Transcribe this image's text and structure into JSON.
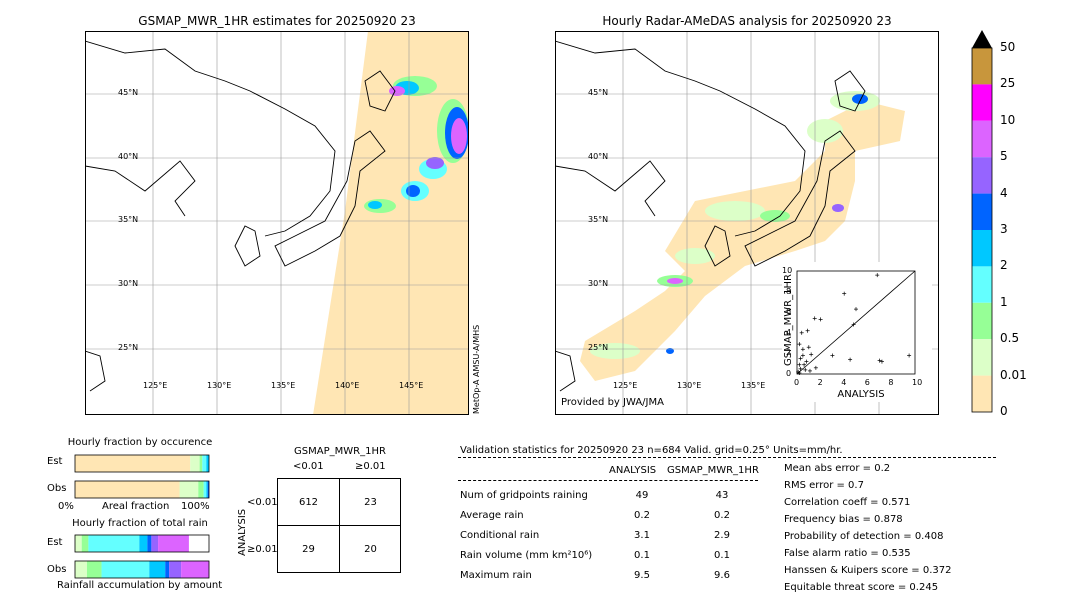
{
  "map_left": {
    "title": "GSMAP_MWR_1HR estimates for 20250920 23",
    "sensor_note": "MetOp-A AMSU-A/MHS",
    "lat_labels": [
      "45°N",
      "40°N",
      "35°N",
      "30°N",
      "25°N"
    ],
    "lon_labels": [
      "125°E",
      "130°E",
      "135°E",
      "140°E",
      "145°E"
    ]
  },
  "map_right": {
    "title": "Hourly Radar-AMeDAS analysis for 20250920 23",
    "provider": "Provided by JWA/JMA",
    "lat_labels": [
      "45°N",
      "40°N",
      "35°N",
      "30°N",
      "25°N"
    ],
    "lon_labels": [
      "125°E",
      "130°E",
      "135°E"
    ]
  },
  "colorbar": {
    "labels": [
      "50",
      "25",
      "10",
      "5",
      "4",
      "3",
      "2",
      "1",
      "0.5",
      "0.01",
      "0"
    ],
    "colors": [
      "#c8963c",
      "#ff00ff",
      "#dc64ff",
      "#9664ff",
      "#0064ff",
      "#00c8ff",
      "#64ffff",
      "#96ff96",
      "#dcffc8",
      "#ffe6b4"
    ]
  },
  "chart_data": [
    {
      "type": "scatter",
      "xlabel": "ANALYSIS",
      "ylabel": "GSMAP_MWR_1HR",
      "xlim": [
        0,
        10
      ],
      "ylim": [
        0,
        10
      ],
      "ticks": [
        "0",
        "2",
        "4",
        "6",
        "8",
        "10"
      ],
      "points": [
        [
          0.1,
          0.2
        ],
        [
          0.2,
          0.1
        ],
        [
          0.3,
          0.5
        ],
        [
          0.5,
          1.8
        ],
        [
          0.6,
          0.9
        ],
        [
          0.8,
          1.2
        ],
        [
          1.0,
          2.6
        ],
        [
          1.2,
          1.9
        ],
        [
          0.4,
          4.0
        ],
        [
          0.9,
          4.2
        ],
        [
          1.5,
          5.4
        ],
        [
          2.0,
          5.3
        ],
        [
          3.0,
          1.8
        ],
        [
          4.0,
          7.8
        ],
        [
          4.5,
          1.4
        ],
        [
          4.8,
          4.8
        ],
        [
          5.0,
          6.3
        ],
        [
          6.8,
          9.6
        ],
        [
          7.0,
          1.3
        ],
        [
          7.2,
          1.2
        ],
        [
          9.5,
          1.8
        ],
        [
          0.2,
          0.9
        ],
        [
          0.3,
          1.5
        ],
        [
          0.7,
          0.4
        ],
        [
          1.1,
          0.3
        ],
        [
          1.6,
          0.6
        ],
        [
          0.5,
          2.4
        ],
        [
          0.2,
          2.9
        ]
      ],
      "grid": false
    },
    {
      "type": "bar",
      "title": "Hourly fraction by occurence",
      "categories": [
        "Est",
        "Obs"
      ],
      "xlabels": [
        "0%",
        "Areal fraction",
        "100%"
      ],
      "segments": [
        [
          {
            "color": "#ffe6b4",
            "value": 0.86
          },
          {
            "color": "#dcffc8",
            "value": 0.07
          },
          {
            "color": "#96ff96",
            "value": 0.02
          },
          {
            "color": "#64ffff",
            "value": 0.03
          },
          {
            "color": "#00c8ff",
            "value": 0.02
          }
        ],
        [
          {
            "color": "#ffe6b4",
            "value": 0.78
          },
          {
            "color": "#dcffc8",
            "value": 0.14
          },
          {
            "color": "#96ff96",
            "value": 0.04
          },
          {
            "color": "#64ffff",
            "value": 0.02
          },
          {
            "color": "#00c8ff",
            "value": 0.01
          },
          {
            "color": "#0064ff",
            "value": 0.01
          }
        ]
      ]
    },
    {
      "type": "bar",
      "title": "Hourly fraction of total rain",
      "categories": [
        "Est",
        "Obs"
      ],
      "xlabels": [
        "Rainfall accumulation by amount"
      ],
      "segments": [
        [
          {
            "color": "#dcffc8",
            "value": 0.05
          },
          {
            "color": "#96ff96",
            "value": 0.05
          },
          {
            "color": "#64ffff",
            "value": 0.38
          },
          {
            "color": "#00c8ff",
            "value": 0.06
          },
          {
            "color": "#0064ff",
            "value": 0.03
          },
          {
            "color": "#9664ff",
            "value": 0.05
          },
          {
            "color": "#dc64ff",
            "value": 0.23
          }
        ],
        [
          {
            "color": "#dcffc8",
            "value": 0.09
          },
          {
            "color": "#96ff96",
            "value": 0.11
          },
          {
            "color": "#64ffff",
            "value": 0.36
          },
          {
            "color": "#00c8ff",
            "value": 0.12
          },
          {
            "color": "#0064ff",
            "value": 0.03
          },
          {
            "color": "#9664ff",
            "value": 0.09
          },
          {
            "color": "#dc64ff",
            "value": 0.21
          }
        ]
      ]
    },
    {
      "type": "table",
      "title": "GSMAP_MWR_1HR",
      "col_labels": [
        "<0.01",
        "≥0.01"
      ],
      "row_labels": [
        "<0.01",
        "≥0.01"
      ],
      "side_label": "ANALYSIS",
      "cells": [
        [
          612,
          23
        ],
        [
          29,
          20
        ]
      ]
    }
  ],
  "validation": {
    "header": "Validation statistics for 20250920 23  n=684 Valid. grid=0.25° Units=mm/hr.",
    "col_analysis": "ANALYSIS",
    "col_gsmap": "GSMAP_MWR_1HR",
    "rows": [
      {
        "label": "Num of gridpoints raining",
        "analysis": "49",
        "gsmap": "43"
      },
      {
        "label": "Average rain",
        "analysis": "0.2",
        "gsmap": "0.2"
      },
      {
        "label": "Conditional rain",
        "analysis": "3.1",
        "gsmap": "2.9"
      },
      {
        "label": "Rain volume (mm km²10⁶)",
        "analysis": "0.1",
        "gsmap": "0.1"
      },
      {
        "label": "Maximum rain",
        "analysis": "9.5",
        "gsmap": "9.6"
      }
    ],
    "scores": [
      "Mean abs error =    0.2",
      "RMS error =    0.7",
      "Correlation coeff =  0.571",
      "Frequency bias =  0.878",
      "Probability of detection =  0.408",
      "False alarm ratio =  0.535",
      "Hanssen & Kuipers score =  0.372",
      "Equitable threat score =  0.245"
    ]
  }
}
